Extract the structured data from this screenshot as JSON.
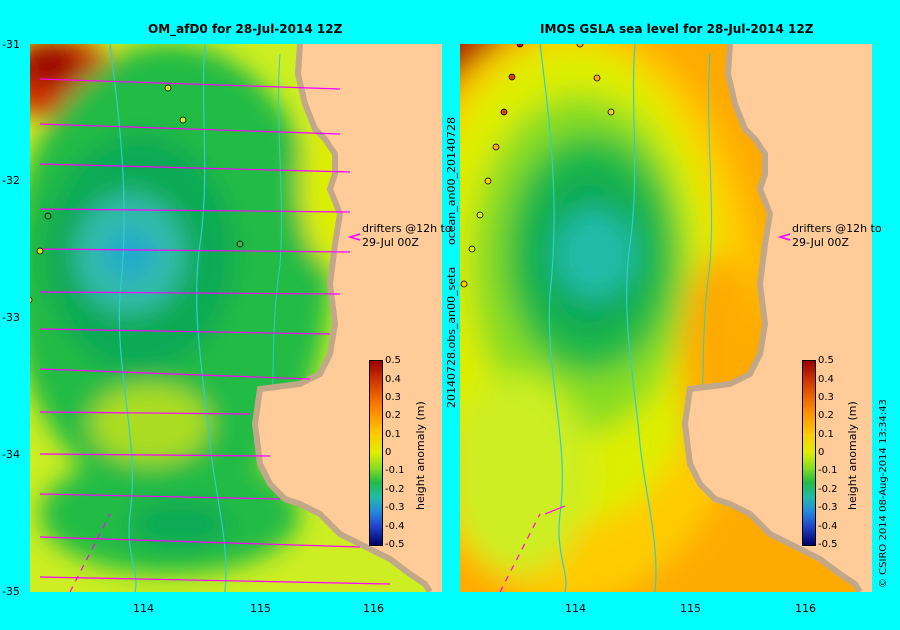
{
  "left_panel": {
    "title": "OM_afD0 for 28-Jul-2014 12Z",
    "y_ticks": [
      "-31",
      "-32",
      "-33",
      "-34",
      "-35"
    ],
    "x_ticks": [
      "114",
      "115",
      "116"
    ],
    "annotation_line1": "drifters @12h to",
    "annotation_line2": "29-Jul 00Z",
    "colorbar_label": "height anomaly (m)"
  },
  "right_panel": {
    "title": "IMOS GSLA sea level  for 28-Jul-2014 12Z",
    "x_ticks": [
      "114",
      "115",
      "116"
    ],
    "annotation_line1": "drifters @12h to",
    "annotation_line2": "29-Jul 00Z",
    "colorbar_label": "height anomaly (m)",
    "side_label_top": "ocean_an00_20140728",
    "side_label_bottom": "20140728.obs_an00_seta"
  },
  "colorbar_ticks": [
    "0.5",
    "0.4",
    "0.3",
    "0.2",
    "0.1",
    "0",
    "-0.1",
    "-0.2",
    "-0.3",
    "-0.4",
    "-0.5"
  ],
  "footer": "© CSIRO 2014   08-Aug-2014 13:34:43",
  "colors": {
    "background": "#00ffff",
    "land": "#ffcc99",
    "arrows": "#ff00ff"
  }
}
